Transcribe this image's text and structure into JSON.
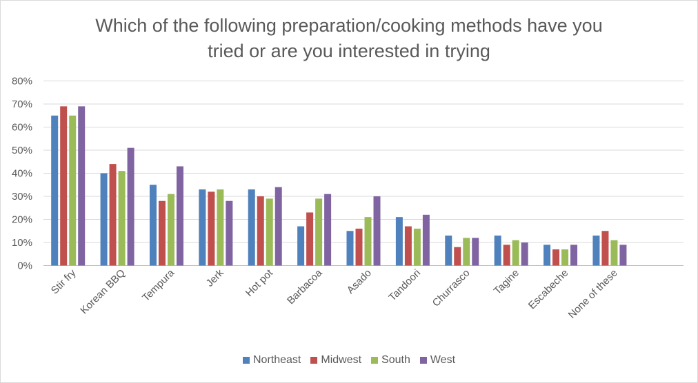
{
  "chart_data": {
    "type": "bar",
    "title_lines": [
      "Which of the following preparation/cooking methods have you",
      "tried or are you interested in trying"
    ],
    "categories": [
      "Stir fry",
      "Korean BBQ",
      "Tempura",
      "Jerk",
      "Hot pot",
      "Barbacoa",
      "Asado",
      "Tandoori",
      "Churrasco",
      "Tagine",
      "Escabeche",
      "None of these"
    ],
    "series": [
      {
        "name": "Northeast",
        "color": "#4f81bd",
        "values": [
          65,
          40,
          35,
          33,
          33,
          17,
          15,
          21,
          13,
          13,
          9,
          13
        ]
      },
      {
        "name": "Midwest",
        "color": "#c0504d",
        "values": [
          69,
          44,
          28,
          32,
          30,
          23,
          16,
          17,
          8,
          9,
          7,
          15
        ]
      },
      {
        "name": "South",
        "color": "#9bbb59",
        "values": [
          65,
          41,
          31,
          33,
          29,
          29,
          21,
          16,
          12,
          11,
          7,
          11
        ]
      },
      {
        "name": "West",
        "color": "#8064a2",
        "values": [
          69,
          51,
          43,
          28,
          34,
          31,
          30,
          22,
          12,
          10,
          9,
          9
        ]
      }
    ],
    "ylim": [
      0,
      80
    ],
    "yticks": [
      0,
      10,
      20,
      30,
      40,
      50,
      60,
      70,
      80
    ],
    "ytick_suffix": "%",
    "grid": true,
    "legend_position": "bottom"
  }
}
